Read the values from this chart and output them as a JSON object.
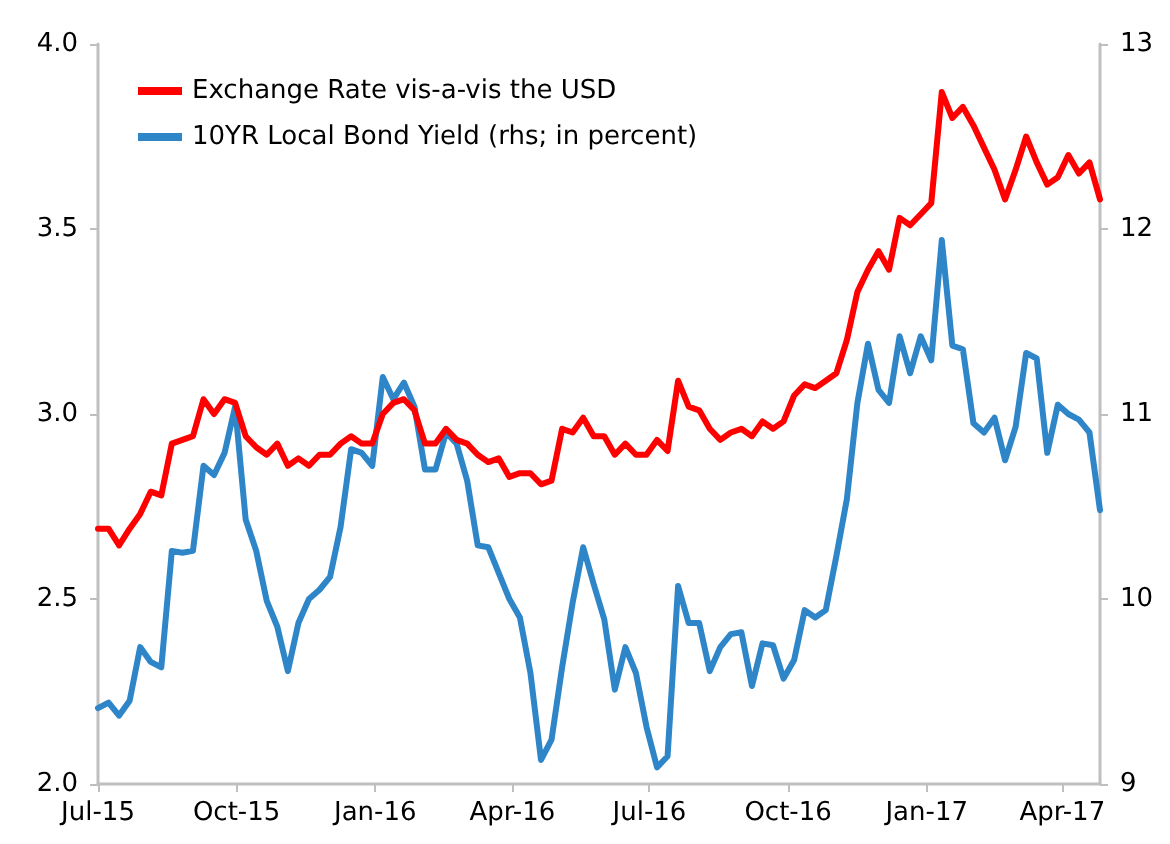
{
  "chart_data": {
    "type": "line",
    "x": [
      "2015-07-01",
      "2015-07-08",
      "2015-07-15",
      "2015-07-22",
      "2015-07-29",
      "2015-08-05",
      "2015-08-12",
      "2015-08-19",
      "2015-08-26",
      "2015-09-02",
      "2015-09-09",
      "2015-09-16",
      "2015-09-23",
      "2015-09-30",
      "2015-10-07",
      "2015-10-14",
      "2015-10-21",
      "2015-10-28",
      "2015-11-04",
      "2015-11-11",
      "2015-11-18",
      "2015-11-25",
      "2015-12-02",
      "2015-12-09",
      "2015-12-16",
      "2015-12-23",
      "2015-12-30",
      "2016-01-06",
      "2016-01-13",
      "2016-01-20",
      "2016-01-27",
      "2016-02-03",
      "2016-02-10",
      "2016-02-17",
      "2016-02-24",
      "2016-03-02",
      "2016-03-09",
      "2016-03-16",
      "2016-03-23",
      "2016-03-30",
      "2016-04-06",
      "2016-04-13",
      "2016-04-20",
      "2016-04-27",
      "2016-05-04",
      "2016-05-11",
      "2016-05-18",
      "2016-05-25",
      "2016-06-01",
      "2016-06-08",
      "2016-06-15",
      "2016-06-22",
      "2016-06-29",
      "2016-07-06",
      "2016-07-13",
      "2016-07-20",
      "2016-07-27",
      "2016-08-03",
      "2016-08-10",
      "2016-08-17",
      "2016-08-24",
      "2016-08-31",
      "2016-09-07",
      "2016-09-14",
      "2016-09-21",
      "2016-09-28",
      "2016-10-05",
      "2016-10-12",
      "2016-10-19",
      "2016-10-26",
      "2016-11-02",
      "2016-11-09",
      "2016-11-16",
      "2016-11-23",
      "2016-11-30",
      "2016-12-07",
      "2016-12-14",
      "2016-12-21",
      "2016-12-28",
      "2017-01-04",
      "2017-01-11",
      "2017-01-18",
      "2017-01-25",
      "2017-02-01",
      "2017-02-08",
      "2017-02-15",
      "2017-02-22",
      "2017-03-01",
      "2017-03-08",
      "2017-03-15",
      "2017-03-22",
      "2017-03-29",
      "2017-04-05",
      "2017-04-12",
      "2017-04-19",
      "2017-04-26"
    ],
    "series": [
      {
        "name": "Exchange Rate vis-a-vis the USD",
        "color": "#ff0000",
        "values": [
          2.69,
          2.69,
          2.645,
          2.69,
          2.73,
          2.79,
          2.78,
          2.92,
          2.93,
          2.94,
          3.04,
          3.0,
          3.04,
          3.03,
          2.94,
          2.91,
          2.89,
          2.92,
          2.86,
          2.88,
          2.86,
          2.89,
          2.89,
          2.92,
          2.94,
          2.92,
          2.92,
          3.0,
          3.03,
          3.04,
          3.01,
          2.92,
          2.92,
          2.96,
          2.93,
          2.92,
          2.89,
          2.87,
          2.88,
          2.83,
          2.84,
          2.84,
          2.81,
          2.82,
          2.96,
          2.95,
          2.99,
          2.94,
          2.94,
          2.89,
          2.92,
          2.89,
          2.89,
          2.93,
          2.9,
          3.09,
          3.02,
          3.01,
          2.96,
          2.93,
          2.95,
          2.96,
          2.94,
          2.98,
          2.96,
          2.98,
          3.05,
          3.08,
          3.07,
          3.09,
          3.11,
          3.2,
          3.33,
          3.39,
          3.44,
          3.39,
          3.53,
          3.51,
          3.54,
          3.57,
          3.87,
          3.8,
          3.83,
          3.78,
          3.72,
          3.66,
          3.58,
          3.66,
          3.75,
          3.68,
          3.62,
          3.64,
          3.7,
          3.65,
          3.68,
          3.58
        ]
      },
      {
        "name": "10YR Local Bond Yield (rhs; in percent)",
        "color": "#2e86c8",
        "axis": "y2",
        "values": [
          9.41,
          9.44,
          9.37,
          9.45,
          9.74,
          9.66,
          9.63,
          10.26,
          10.25,
          10.26,
          10.72,
          10.67,
          10.79,
          11.04,
          10.43,
          10.26,
          9.99,
          9.85,
          9.61,
          9.87,
          10.0,
          10.05,
          10.12,
          10.39,
          10.81,
          10.79,
          10.72,
          11.2,
          11.08,
          11.17,
          11.04,
          10.7,
          10.7,
          10.9,
          10.84,
          10.64,
          10.29,
          10.28,
          10.14,
          10.0,
          9.9,
          9.6,
          9.13,
          9.24,
          9.63,
          9.98,
          10.28,
          10.08,
          9.89,
          9.51,
          9.74,
          9.6,
          9.31,
          9.09,
          9.15,
          10.07,
          9.87,
          9.87,
          9.61,
          9.74,
          9.81,
          9.82,
          9.53,
          9.76,
          9.75,
          9.57,
          9.67,
          9.94,
          9.9,
          9.94,
          10.23,
          10.54,
          11.06,
          11.38,
          11.13,
          11.06,
          11.42,
          11.22,
          11.42,
          11.29,
          11.94,
          11.37,
          11.35,
          10.95,
          10.9,
          10.98,
          10.75,
          10.93,
          11.33,
          11.3,
          10.79,
          11.05,
          11.0,
          10.97,
          10.9,
          10.48
        ]
      }
    ],
    "xlim": [
      "2015-07-01",
      "2017-04-26"
    ],
    "xticks": [
      {
        "value": "2015-07-01",
        "label": "Jul-15"
      },
      {
        "value": "2015-10-01",
        "label": "Oct-15"
      },
      {
        "value": "2016-01-01",
        "label": "Jan-16"
      },
      {
        "value": "2016-04-01",
        "label": "Apr-16"
      },
      {
        "value": "2016-07-01",
        "label": "Jul-16"
      },
      {
        "value": "2016-10-01",
        "label": "Oct-16"
      },
      {
        "value": "2017-01-01",
        "label": "Jan-17"
      },
      {
        "value": "2017-04-01",
        "label": "Apr-17"
      }
    ],
    "ylim": [
      2,
      4
    ],
    "yticks": [
      {
        "value": 2,
        "label": "2.0"
      },
      {
        "value": 2.5,
        "label": "2.5"
      },
      {
        "value": 3,
        "label": "3.0"
      },
      {
        "value": 3.5,
        "label": "3.5"
      },
      {
        "value": 4,
        "label": "4.0"
      }
    ],
    "y2lim": [
      9,
      13
    ],
    "y2ticks": [
      9,
      10,
      11,
      12,
      13
    ],
    "grid": false,
    "legend": "top left",
    "marker": "none",
    "line_style": "solid"
  }
}
